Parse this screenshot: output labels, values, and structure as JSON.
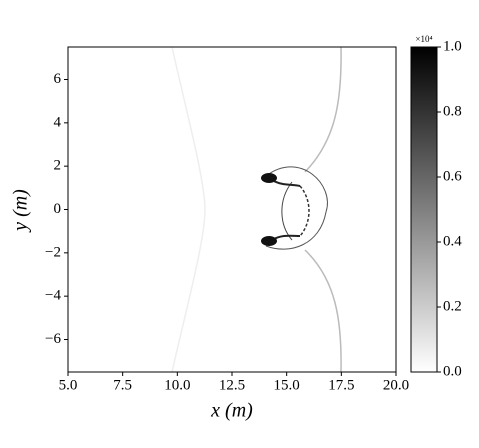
{
  "chart_data": {
    "type": "heatmap",
    "xlabel": "x (m)",
    "ylabel": "y (m)",
    "xlim": [
      5,
      20
    ],
    "xticks": [
      {
        "value": 5,
        "label": "5.0"
      },
      7.5,
      {
        "value": 10,
        "label": "10.0"
      },
      12.5,
      {
        "value": 15,
        "label": "15.0"
      },
      17.5,
      {
        "value": 20,
        "label": "20.0"
      }
    ],
    "ylim": [
      -7.5,
      7.5
    ],
    "yticks": [
      {
        "value": -6,
        "label": "−6"
      },
      {
        "value": -4,
        "label": "−4"
      },
      {
        "value": -2,
        "label": "−2"
      },
      0,
      2,
      4,
      6
    ],
    "colormap": [
      "#ffffff",
      "#000000"
    ],
    "colorbar": {
      "lim": [
        0,
        1
      ],
      "scale_label": "×10⁴",
      "ticks": [
        {
          "value": 0,
          "label": "0.0"
        },
        0.2,
        0.4,
        0.6,
        0.8,
        {
          "value": 1,
          "label": "1.0"
        }
      ]
    }
  }
}
